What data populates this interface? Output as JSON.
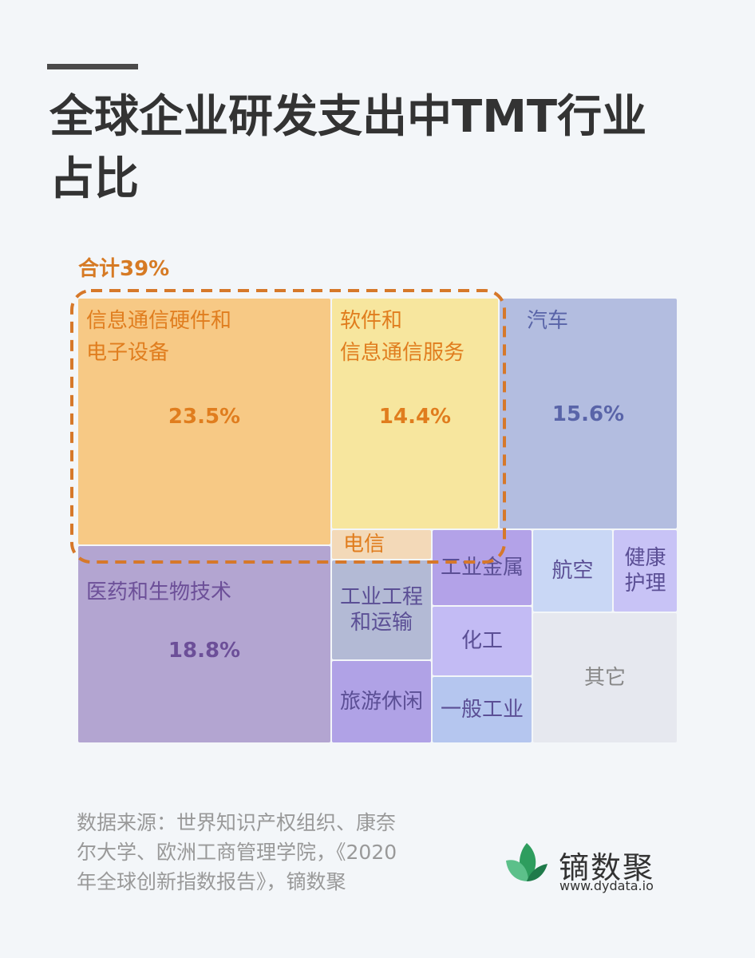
{
  "chart_data": {
    "type": "treemap",
    "title": "全球企业研发支出中TMT行业\n占比",
    "annotation": "合计39%",
    "categories": [
      "信息通信硬件和\n电子设备",
      "软件和\n信息通信服务",
      "电信",
      "汽车",
      "医药和生物技术",
      "工业工程\n和运输",
      "旅游休闲",
      "工业金属",
      "化工",
      "一般工业",
      "航空",
      "健康\n护理",
      "其它"
    ],
    "values": [
      23.5,
      14.4,
      1.1,
      15.6,
      18.8,
      3.7,
      3.0,
      2.8,
      2.6,
      2.4,
      2.4,
      1.9,
      7.0
    ],
    "value_labels": [
      "23.5%",
      "14.4%",
      null,
      "15.6%",
      "18.8%",
      null,
      null,
      null,
      null,
      null,
      null,
      null,
      null
    ],
    "colors": [
      "#f7c985",
      "#f7e69e",
      "#f3d9b8",
      "#b3bde0",
      "#b3a5d1",
      "#b3bad5",
      "#b0a2e6",
      "#b3a2e8",
      "#c3bbf4",
      "#b5c6ef",
      "#c9d7f5",
      "#c8c3f6",
      "#e6e8ef"
    ],
    "label_colors": [
      "#e07d1e",
      "#e07d1e",
      "#e07d1e",
      "#5964a8",
      "#6c4f98",
      "#5b4f95",
      "#5b4f95",
      "#5b4f95",
      "#5b4f95",
      "#5b4f95",
      "#5b4f95",
      "#5b4f95",
      "#888888"
    ],
    "source": "数据来源：世界知识产权组织、康奈\n尔大学、欧洲工商管理学院，《2020\n年全球创新指数报告》，镝数聚",
    "brand": "镝数聚",
    "site": "www.dydata.io"
  }
}
